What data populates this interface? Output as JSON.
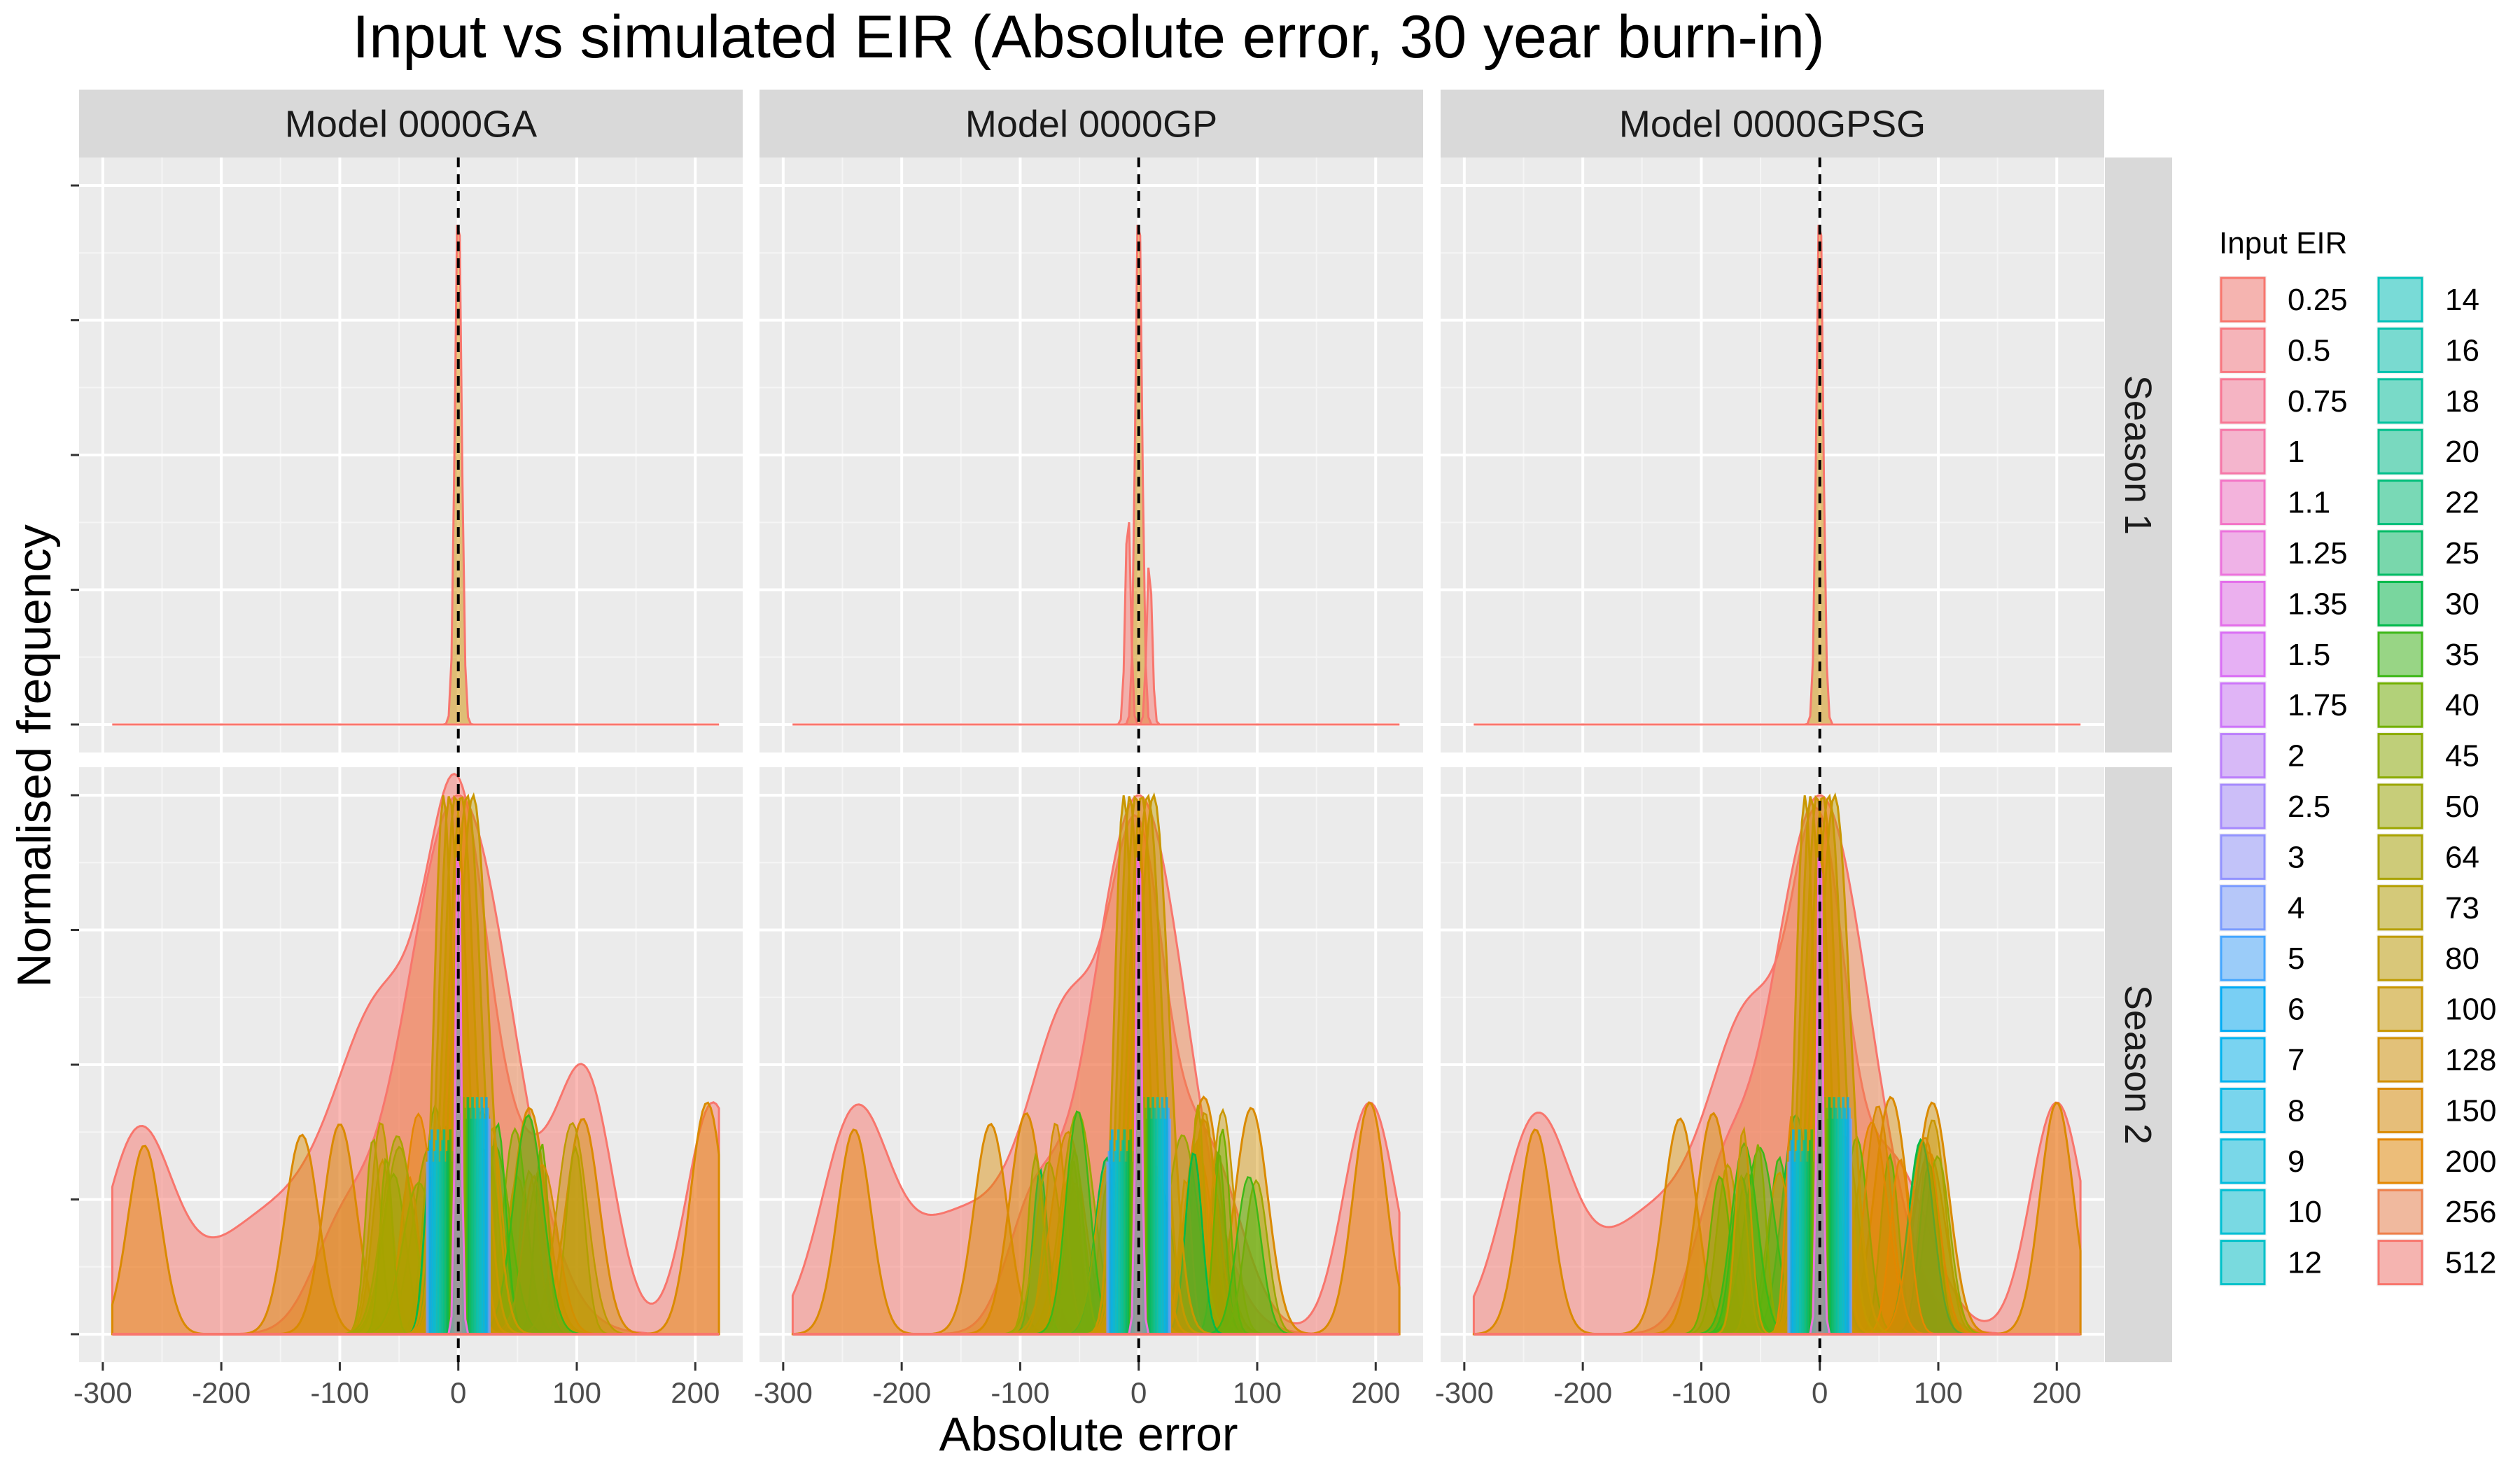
{
  "chart_data": {
    "type": "area",
    "subtype": "faceted density plot",
    "title": "Input vs simulated EIR (Absolute error, 30 year burn-in)",
    "xlabel": "Absolute error",
    "ylabel": "Normalised frequency",
    "xlim": [
      -320,
      240
    ],
    "x_ticks": [
      -300,
      -200,
      -100,
      0,
      100,
      200
    ],
    "x_tick_labels": [
      "-300",
      "-200",
      "-100",
      "0",
      "100",
      "200"
    ],
    "y_tick_labels_shown": false,
    "grid": true,
    "reference_line": {
      "x": 0,
      "style": "dashed",
      "color": "#000000"
    },
    "columns": [
      "Model 0000GA",
      "Model 0000GP",
      "Model 0000GPSG"
    ],
    "rows": [
      "Season 1",
      "Season 2"
    ],
    "legend": {
      "title": "Input EIR",
      "position": "right",
      "columns": 2,
      "entries": [
        {
          "label": "0.25",
          "color": "#F8766D"
        },
        {
          "label": "0.5",
          "color": "#F8767F"
        },
        {
          "label": "0.75",
          "color": "#F87693"
        },
        {
          "label": "1",
          "color": "#F677A8"
        },
        {
          "label": "1.1",
          "color": "#F374C6"
        },
        {
          "label": "1.25",
          "color": "#EC72DC"
        },
        {
          "label": "1.35",
          "color": "#E46EEA"
        },
        {
          "label": "1.5",
          "color": "#DA6EF5"
        },
        {
          "label": "1.75",
          "color": "#CD75FA"
        },
        {
          "label": "2",
          "color": "#BB7FFC"
        },
        {
          "label": "2.5",
          "color": "#A68AFE"
        },
        {
          "label": "3",
          "color": "#9293FF"
        },
        {
          "label": "4",
          "color": "#7A9BFF"
        },
        {
          "label": "5",
          "color": "#44A6FF"
        },
        {
          "label": "6",
          "color": "#00ABF5"
        },
        {
          "label": "7",
          "color": "#00B3F0"
        },
        {
          "label": "8",
          "color": "#00B8E7"
        },
        {
          "label": "9",
          "color": "#00BCDE"
        },
        {
          "label": "10",
          "color": "#00BFD4"
        },
        {
          "label": "12",
          "color": "#00C1C9"
        },
        {
          "label": "14",
          "color": "#00C3BB"
        },
        {
          "label": "16",
          "color": "#00C2AD"
        },
        {
          "label": "18",
          "color": "#00C29E"
        },
        {
          "label": "20",
          "color": "#00C08C"
        },
        {
          "label": "22",
          "color": "#00BF7A"
        },
        {
          "label": "25",
          "color": "#00BC66"
        },
        {
          "label": "30",
          "color": "#00BA4A"
        },
        {
          "label": "35",
          "color": "#3DB817"
        },
        {
          "label": "40",
          "color": "#72B000"
        },
        {
          "label": "45",
          "color": "#8BAB00"
        },
        {
          "label": "50",
          "color": "#9CA700"
        },
        {
          "label": "64",
          "color": "#A9A300"
        },
        {
          "label": "73",
          "color": "#B59F00"
        },
        {
          "label": "80",
          "color": "#BF9B00"
        },
        {
          "label": "100",
          "color": "#C99700"
        },
        {
          "label": "128",
          "color": "#D29000"
        },
        {
          "label": "150",
          "color": "#DA8A00"
        },
        {
          "label": "200",
          "color": "#E58700"
        },
        {
          "label": "256",
          "color": "#EE7F4A"
        },
        {
          "label": "512",
          "color": "#F8766D"
        }
      ]
    },
    "panels": [
      {
        "column": "Model 0000GA",
        "row": "Season 1",
        "density_peaks_approx": [
          {
            "x": 0,
            "height": 1.0
          }
        ]
      },
      {
        "column": "Model 0000GP",
        "row": "Season 1",
        "density_peaks_approx": [
          {
            "x": 0,
            "height": 1.0
          },
          {
            "x": -9,
            "height": 0.41
          },
          {
            "x": 9,
            "height": 0.31
          }
        ]
      },
      {
        "column": "Model 0000GPSG",
        "row": "Season 1",
        "density_peaks_approx": [
          {
            "x": 0,
            "height": 1.0
          }
        ]
      },
      {
        "column": "Model 0000GA",
        "row": "Season 2",
        "density_peaks_approx": [
          {
            "x": -265,
            "height": 0.35
          },
          {
            "x": -132,
            "height": 0.37
          },
          {
            "x": -100,
            "height": 0.39
          },
          {
            "x": 0,
            "height": 1.0
          },
          {
            "x": 60,
            "height": 0.42
          },
          {
            "x": 105,
            "height": 0.4
          },
          {
            "x": 210,
            "height": 0.43
          }
        ]
      },
      {
        "column": "Model 0000GP",
        "row": "Season 2",
        "density_peaks_approx": [
          {
            "x": -240,
            "height": 0.38
          },
          {
            "x": -125,
            "height": 0.39
          },
          {
            "x": -95,
            "height": 0.41
          },
          {
            "x": 0,
            "height": 1.0
          },
          {
            "x": 55,
            "height": 0.44
          },
          {
            "x": 95,
            "height": 0.42
          },
          {
            "x": 195,
            "height": 0.43
          }
        ]
      },
      {
        "column": "Model 0000GPSG",
        "row": "Season 2",
        "density_peaks_approx": [
          {
            "x": -240,
            "height": 0.38
          },
          {
            "x": -118,
            "height": 0.4
          },
          {
            "x": -90,
            "height": 0.41
          },
          {
            "x": 0,
            "height": 1.0
          },
          {
            "x": 60,
            "height": 0.44
          },
          {
            "x": 95,
            "height": 0.43
          },
          {
            "x": 200,
            "height": 0.43
          }
        ]
      }
    ]
  }
}
